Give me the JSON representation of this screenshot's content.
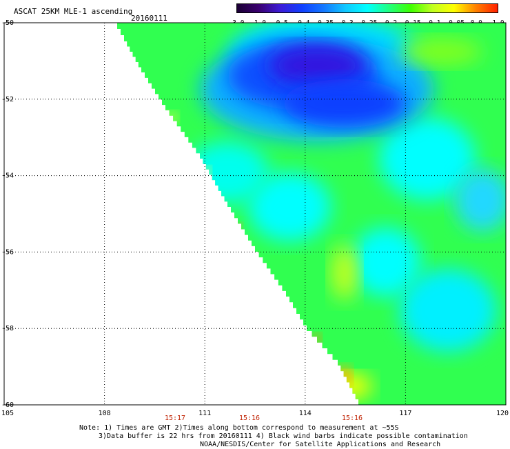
{
  "header": {
    "title": "ASCAT 25KM MLE-1 ascending",
    "date": "20160111"
  },
  "legend": {
    "labels": [
      "-3.0",
      "-1.0",
      "-0.5",
      "-0.4",
      "-0.35",
      "-0.3",
      "-0.25",
      "-0.2",
      "-0.15",
      "-0.1",
      "-0.05",
      "0.0",
      "1.0"
    ],
    "colors": [
      "#1a0033",
      "#3a0070",
      "#3c1cd8",
      "#1040ff",
      "#1478ff",
      "#10c8ff",
      "#00ffff",
      "#20ff80",
      "#40ff00",
      "#c0ff20",
      "#ffff00",
      "#ff8000",
      "#ff2000"
    ]
  },
  "map": {
    "lat_labels": [
      "-50",
      "-52",
      "-54",
      "-56",
      "-58",
      "-60"
    ],
    "lon_labels": [
      "105",
      "108",
      "111",
      "114",
      "117",
      "120"
    ],
    "times": [
      "15:17",
      "15:16",
      "15:16"
    ]
  },
  "notes": {
    "line1": "Note: 1) Times are GMT 2)Times along bottom correspond to measurement at ~55S",
    "line2": "3)Data buffer is 22 hrs from 20160111 4) Black wind barbs indicate possible contamination",
    "line3": "NOAA/NESDIS/Center for Satellite Applications and Research"
  }
}
